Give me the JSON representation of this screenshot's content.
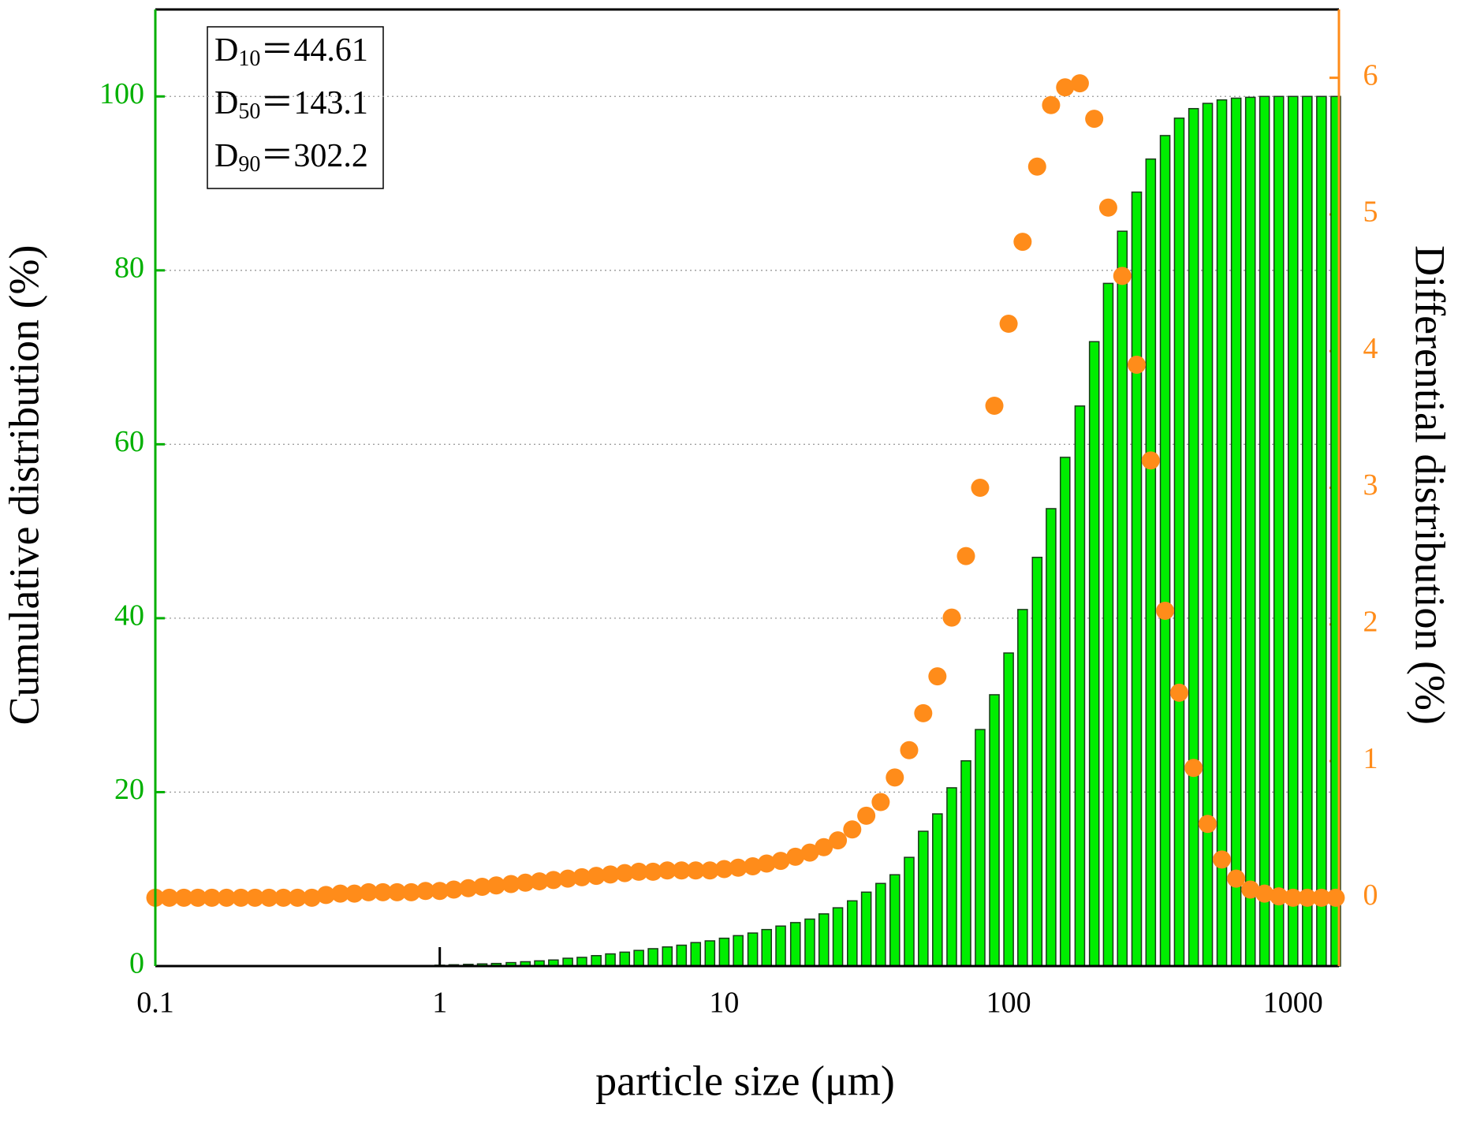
{
  "chart_data": {
    "type": "bar",
    "x_label": "particle size (μm)",
    "y_label": "Cumulative distribution (%)",
    "y2_label": "Differential distribution (%)",
    "annotations": [
      {
        "base": "D",
        "sub": "10",
        "text": "＝44.61"
      },
      {
        "base": "D",
        "sub": "50",
        "text": "＝143.1"
      },
      {
        "base": "D",
        "sub": "90",
        "text": "＝302.2"
      }
    ],
    "x": [
      0.1,
      0.112,
      0.126,
      0.141,
      0.158,
      0.178,
      0.2,
      0.224,
      0.251,
      0.282,
      0.316,
      0.355,
      0.398,
      0.447,
      0.501,
      0.562,
      0.631,
      0.708,
      0.794,
      0.891,
      1,
      1.12,
      1.26,
      1.41,
      1.58,
      1.78,
      2,
      2.24,
      2.51,
      2.82,
      3.16,
      3.55,
      3.98,
      4.47,
      5.01,
      5.62,
      6.31,
      7.08,
      7.94,
      8.91,
      10,
      11.2,
      12.6,
      14.1,
      15.8,
      17.8,
      20,
      22.4,
      25.1,
      28.2,
      31.6,
      35.5,
      39.8,
      44.7,
      50.1,
      56.2,
      63.1,
      70.8,
      79.4,
      89.1,
      100,
      112,
      126,
      141,
      158,
      178,
      200,
      224,
      251,
      282,
      316,
      355,
      398,
      447,
      501,
      562,
      631,
      708,
      794,
      891,
      1000,
      1122,
      1259,
      1413
    ],
    "series": [
      {
        "name": "Cumulative distribution",
        "type": "bar",
        "axis": "y",
        "color": "#00ee00",
        "edge": "#1a3a1a",
        "values": [
          0,
          0,
          0,
          0,
          0,
          0,
          0,
          0,
          0,
          0,
          0,
          0,
          0,
          0,
          0.01,
          0.02,
          0.03,
          0.04,
          0.05,
          0.07,
          0.1,
          0.15,
          0.2,
          0.25,
          0.3,
          0.4,
          0.5,
          0.6,
          0.7,
          0.9,
          1.0,
          1.2,
          1.4,
          1.6,
          1.8,
          2.0,
          2.2,
          2.4,
          2.7,
          2.9,
          3.2,
          3.5,
          3.8,
          4.2,
          4.6,
          5.0,
          5.4,
          6.0,
          6.7,
          7.5,
          8.5,
          9.5,
          10.5,
          12.5,
          15.5,
          17.5,
          20.5,
          23.6,
          27.2,
          31.2,
          36,
          41,
          47,
          52.6,
          58.5,
          64.4,
          71.8,
          78.5,
          84.5,
          89,
          92.8,
          95.5,
          97.5,
          98.6,
          99.2,
          99.6,
          99.8,
          99.9,
          100,
          100,
          100,
          100,
          100,
          100
        ]
      },
      {
        "name": "Differential distribution",
        "type": "scatter",
        "axis": "y2",
        "color": "#ff8c1a",
        "values": [
          0,
          0,
          0,
          0,
          0,
          0,
          0,
          0,
          0,
          0,
          0,
          0,
          0.02,
          0.03,
          0.03,
          0.04,
          0.04,
          0.04,
          0.04,
          0.05,
          0.05,
          0.06,
          0.07,
          0.08,
          0.09,
          0.1,
          0.11,
          0.12,
          0.13,
          0.14,
          0.15,
          0.16,
          0.17,
          0.18,
          0.19,
          0.19,
          0.2,
          0.2,
          0.2,
          0.2,
          0.21,
          0.22,
          0.23,
          0.25,
          0.27,
          0.3,
          0.33,
          0.37,
          0.42,
          0.5,
          0.6,
          0.7,
          0.88,
          1.08,
          1.35,
          1.62,
          2.05,
          2.5,
          3.0,
          3.6,
          4.2,
          4.8,
          5.35,
          5.8,
          5.93,
          5.96,
          5.7,
          5.05,
          4.55,
          3.9,
          3.2,
          2.1,
          1.5,
          0.95,
          0.54,
          0.28,
          0.14,
          0.06,
          0.03,
          0.01,
          0,
          0,
          0,
          0
        ]
      }
    ],
    "xlim": [
      0.1,
      1450
    ],
    "xticks": [
      0.1,
      1,
      10,
      100,
      1000
    ],
    "xscale": "log",
    "ylim": [
      0,
      110
    ],
    "yticks": [
      0,
      20,
      40,
      60,
      80,
      100
    ],
    "y_color": "#00b000",
    "y2lim": [
      -0.5,
      6.5
    ],
    "y2ticks": [
      0,
      1,
      2,
      3,
      4,
      5,
      6
    ],
    "y2_color": "#ff8c1a",
    "grid": true
  }
}
